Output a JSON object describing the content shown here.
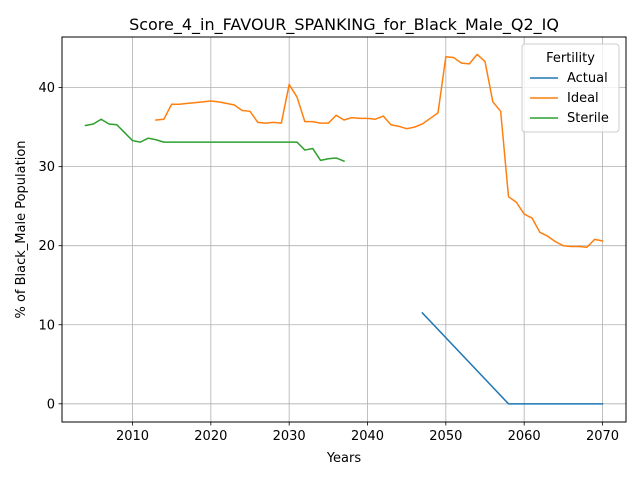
{
  "chart_data": {
    "type": "line",
    "title": "Score_4_in_FAVOUR_SPANKING_for_Black_Male_Q2_IQ",
    "xlabel": "Years",
    "ylabel": "% of Black_Male Population",
    "xlim": [
      2001,
      2073
    ],
    "ylim": [
      -2.3,
      46.4
    ],
    "xticks": [
      2010,
      2020,
      2030,
      2040,
      2050,
      2060,
      2070
    ],
    "yticks": [
      0,
      10,
      20,
      30,
      40
    ],
    "grid": true,
    "legend": {
      "title": "Fertility",
      "placement": "top-right"
    },
    "series": [
      {
        "name": "Actual",
        "color": "#1f77b4",
        "x": [
          2047,
          2058,
          2059,
          2060,
          2062,
          2064,
          2066,
          2068,
          2070
        ],
        "y": [
          11.5,
          0.0,
          0.0,
          0.0,
          0.0,
          0.0,
          0.0,
          0.0,
          0.0
        ]
      },
      {
        "name": "Ideal",
        "color": "#ff7f0e",
        "x": [
          2013,
          2014,
          2015,
          2016,
          2017,
          2018,
          2019,
          2020,
          2021,
          2022,
          2023,
          2024,
          2025,
          2026,
          2027,
          2028,
          2029,
          2030,
          2031,
          2032,
          2033,
          2034,
          2035,
          2036,
          2037,
          2038,
          2039,
          2040,
          2041,
          2042,
          2043,
          2044,
          2045,
          2046,
          2047,
          2048,
          2049,
          2050,
          2051,
          2052,
          2053,
          2054,
          2055,
          2056,
          2057,
          2058,
          2059,
          2060,
          2061,
          2062,
          2063,
          2064,
          2065,
          2066,
          2067,
          2068,
          2069,
          2070
        ],
        "y": [
          35.9,
          36.0,
          37.9,
          37.9,
          38.0,
          38.1,
          38.2,
          38.3,
          38.2,
          38.0,
          37.8,
          37.1,
          37.0,
          35.6,
          35.5,
          35.6,
          35.5,
          40.4,
          38.8,
          35.7,
          35.7,
          35.5,
          35.5,
          36.5,
          35.9,
          36.2,
          36.1,
          36.1,
          36.0,
          36.4,
          35.3,
          35.1,
          34.8,
          35.0,
          35.4,
          36.1,
          36.8,
          43.9,
          43.8,
          43.1,
          43.0,
          44.2,
          43.3,
          38.2,
          37.0,
          26.2,
          25.5,
          24.0,
          23.5,
          21.7,
          21.2,
          20.5,
          20.0,
          19.9,
          19.9,
          19.8,
          20.8,
          20.6
        ]
      },
      {
        "name": "Sterile",
        "color": "#2ca02c",
        "x": [
          2004,
          2005,
          2006,
          2007,
          2008,
          2009,
          2010,
          2011,
          2012,
          2013,
          2014,
          2015,
          2016,
          2017,
          2018,
          2019,
          2020,
          2021,
          2022,
          2023,
          2024,
          2025,
          2026,
          2027,
          2028,
          2029,
          2030,
          2031,
          2032,
          2033,
          2034,
          2035,
          2036,
          2037
        ],
        "y": [
          35.2,
          35.4,
          36.0,
          35.4,
          35.3,
          34.3,
          33.3,
          33.1,
          33.6,
          33.4,
          33.1,
          33.1,
          33.1,
          33.1,
          33.1,
          33.1,
          33.1,
          33.1,
          33.1,
          33.1,
          33.1,
          33.1,
          33.1,
          33.1,
          33.1,
          33.1,
          33.1,
          33.1,
          32.1,
          32.3,
          30.8,
          31.0,
          31.1,
          30.7
        ]
      }
    ]
  }
}
